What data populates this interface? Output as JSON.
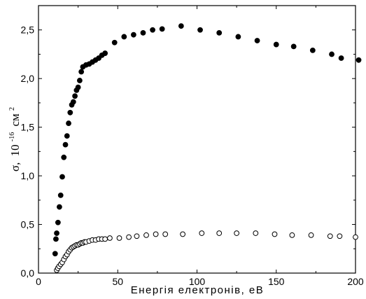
{
  "chart_data": {
    "type": "scatter",
    "xlabel": "Енергія електронів, еВ",
    "ylabel": {
      "symbol": "σ,",
      "base": "10",
      "exponent": "-16",
      "unit": "см",
      "unit_exponent": "2"
    },
    "xlim": [
      0,
      200
    ],
    "ylim": [
      0.0,
      2.75
    ],
    "x_ticks": [
      0,
      50,
      100,
      150,
      200
    ],
    "x_tick_labels": [
      "0",
      "50",
      "100",
      "150",
      "200"
    ],
    "y_ticks": [
      0.0,
      0.5,
      1.0,
      1.5,
      2.0,
      2.5
    ],
    "y_tick_labels": [
      "0,0",
      "0,5",
      "1,0",
      "1,5",
      "2,0",
      "2,5"
    ],
    "grid": false,
    "legend": "none",
    "series": [
      {
        "marker": "filled-circle",
        "color": "#000000",
        "points": [
          [
            10.5,
            0.2
          ],
          [
            11,
            0.35
          ],
          [
            11.5,
            0.41
          ],
          [
            12.3,
            0.52
          ],
          [
            13.2,
            0.68
          ],
          [
            14,
            0.8
          ],
          [
            15,
            0.99
          ],
          [
            16,
            1.19
          ],
          [
            17,
            1.32
          ],
          [
            18,
            1.41
          ],
          [
            19,
            1.54
          ],
          [
            20,
            1.65
          ],
          [
            21,
            1.73
          ],
          [
            22,
            1.76
          ],
          [
            23,
            1.82
          ],
          [
            24,
            1.88
          ],
          [
            25,
            1.91
          ],
          [
            26,
            1.98
          ],
          [
            27,
            2.07
          ],
          [
            28,
            2.12
          ],
          [
            30,
            2.14
          ],
          [
            32,
            2.15
          ],
          [
            34,
            2.17
          ],
          [
            36,
            2.19
          ],
          [
            38,
            2.21
          ],
          [
            40,
            2.24
          ],
          [
            42,
            2.26
          ],
          [
            48,
            2.37
          ],
          [
            54,
            2.43
          ],
          [
            60,
            2.45
          ],
          [
            66,
            2.47
          ],
          [
            72,
            2.5
          ],
          [
            78,
            2.51
          ],
          [
            90,
            2.54
          ],
          [
            102,
            2.5
          ],
          [
            114,
            2.47
          ],
          [
            126,
            2.43
          ],
          [
            138,
            2.39
          ],
          [
            150,
            2.35
          ],
          [
            161,
            2.33
          ],
          [
            173,
            2.29
          ],
          [
            185,
            2.25
          ],
          [
            191,
            2.21
          ],
          [
            202,
            2.19
          ]
        ]
      },
      {
        "marker": "open-circle",
        "color": "#000000",
        "points": [
          [
            11.5,
            0.03
          ],
          [
            12.2,
            0.05
          ],
          [
            13,
            0.07
          ],
          [
            14,
            0.09
          ],
          [
            15,
            0.11
          ],
          [
            16,
            0.14
          ],
          [
            17,
            0.17
          ],
          [
            18,
            0.19
          ],
          [
            19,
            0.22
          ],
          [
            20,
            0.24
          ],
          [
            21,
            0.26
          ],
          [
            22,
            0.27
          ],
          [
            23,
            0.28
          ],
          [
            24,
            0.29
          ],
          [
            25,
            0.29
          ],
          [
            26,
            0.3
          ],
          [
            27,
            0.31
          ],
          [
            28,
            0.31
          ],
          [
            29,
            0.32
          ],
          [
            30,
            0.32
          ],
          [
            32,
            0.33
          ],
          [
            34,
            0.34
          ],
          [
            36,
            0.34
          ],
          [
            38,
            0.35
          ],
          [
            40,
            0.35
          ],
          [
            42,
            0.35
          ],
          [
            45,
            0.36
          ],
          [
            51,
            0.36
          ],
          [
            57,
            0.37
          ],
          [
            62,
            0.38
          ],
          [
            68,
            0.39
          ],
          [
            74,
            0.4
          ],
          [
            80,
            0.4
          ],
          [
            91,
            0.4
          ],
          [
            103,
            0.41
          ],
          [
            114,
            0.41
          ],
          [
            125,
            0.41
          ],
          [
            137,
            0.41
          ],
          [
            149,
            0.4
          ],
          [
            160,
            0.39
          ],
          [
            172,
            0.39
          ],
          [
            184,
            0.38
          ],
          [
            190,
            0.38
          ],
          [
            200,
            0.37
          ]
        ]
      }
    ]
  }
}
